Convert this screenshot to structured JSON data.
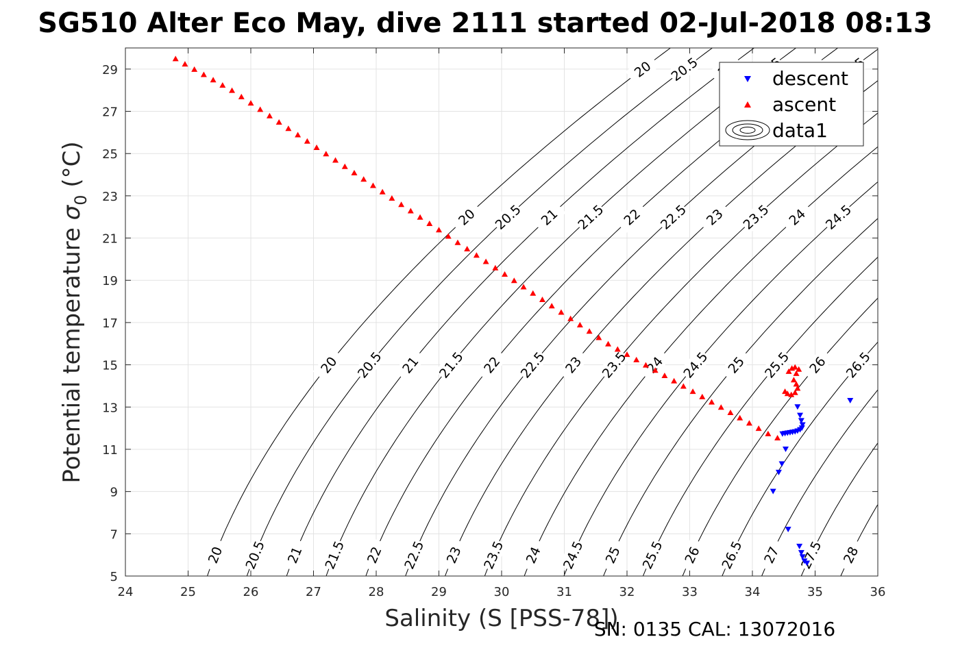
{
  "chart_data": {
    "type": "scatter",
    "title": "SG510 Alter Eco May, dive 2111 started 02-Jul-2018 08:13",
    "xlabel": "Salinity (S [PSS-78])",
    "ylabel_main": "Potential temperature ",
    "ylabel_sigma": "σ",
    "ylabel_subscript": "0",
    "ylabel_unit": " (°C)",
    "xlim": [
      24,
      36
    ],
    "ylim": [
      5,
      30
    ],
    "xticks": [
      24,
      25,
      26,
      27,
      28,
      29,
      30,
      31,
      32,
      33,
      34,
      35,
      36
    ],
    "yticks": [
      5,
      7,
      9,
      11,
      13,
      15,
      17,
      19,
      21,
      23,
      25,
      27,
      29
    ],
    "grid": true,
    "legend_position": "top-right",
    "footer": "SN: 0135  CAL: 13072016",
    "contour_levels": [
      20,
      20.5,
      21,
      21.5,
      22,
      22.5,
      23,
      23.5,
      24,
      24.5,
      25,
      25.5,
      26,
      26.5,
      27,
      27.5,
      28
    ],
    "series": [
      {
        "name": "descent",
        "marker": "triangle-down",
        "color": "#0000ff",
        "points": [
          [
            34.72,
            13.0
          ],
          [
            34.76,
            12.6
          ],
          [
            34.78,
            12.35
          ],
          [
            34.8,
            12.15
          ],
          [
            34.79,
            12.0
          ],
          [
            34.76,
            11.92
          ],
          [
            34.72,
            11.86
          ],
          [
            34.68,
            11.82
          ],
          [
            34.64,
            11.8
          ],
          [
            34.6,
            11.78
          ],
          [
            34.56,
            11.76
          ],
          [
            34.52,
            11.74
          ],
          [
            34.48,
            11.72
          ],
          [
            34.53,
            11.0
          ],
          [
            34.47,
            10.3
          ],
          [
            34.42,
            9.9
          ],
          [
            34.33,
            9.0
          ],
          [
            34.57,
            7.2
          ],
          [
            34.75,
            6.4
          ],
          [
            34.78,
            6.1
          ],
          [
            34.8,
            5.9
          ],
          [
            34.83,
            5.7
          ],
          [
            34.87,
            5.6
          ],
          [
            35.56,
            13.3
          ]
        ]
      },
      {
        "name": "ascent",
        "marker": "triangle-up",
        "color": "#ff0000",
        "points": [
          [
            24.8,
            29.5
          ],
          [
            24.95,
            29.25
          ],
          [
            25.1,
            29.0
          ],
          [
            25.25,
            28.75
          ],
          [
            25.4,
            28.5
          ],
          [
            25.55,
            28.25
          ],
          [
            25.7,
            28.0
          ],
          [
            25.85,
            27.7
          ],
          [
            26.0,
            27.4
          ],
          [
            26.15,
            27.1
          ],
          [
            26.3,
            26.8
          ],
          [
            26.45,
            26.5
          ],
          [
            26.6,
            26.2
          ],
          [
            26.75,
            25.9
          ],
          [
            26.9,
            25.6
          ],
          [
            27.05,
            25.3
          ],
          [
            27.2,
            25.0
          ],
          [
            27.35,
            24.7
          ],
          [
            27.5,
            24.4
          ],
          [
            27.65,
            24.1
          ],
          [
            27.8,
            23.8
          ],
          [
            27.95,
            23.5
          ],
          [
            28.1,
            23.2
          ],
          [
            28.25,
            22.9
          ],
          [
            28.4,
            22.6
          ],
          [
            28.55,
            22.3
          ],
          [
            28.7,
            22.0
          ],
          [
            28.85,
            21.7
          ],
          [
            29.0,
            21.4
          ],
          [
            29.15,
            21.1
          ],
          [
            29.3,
            20.8
          ],
          [
            29.45,
            20.5
          ],
          [
            29.6,
            20.2
          ],
          [
            29.75,
            19.9
          ],
          [
            29.9,
            19.6
          ],
          [
            30.05,
            19.3
          ],
          [
            30.2,
            19.0
          ],
          [
            30.35,
            18.7
          ],
          [
            30.5,
            18.4
          ],
          [
            30.65,
            18.1
          ],
          [
            30.8,
            17.8
          ],
          [
            30.95,
            17.5
          ],
          [
            31.1,
            17.2
          ],
          [
            31.25,
            16.9
          ],
          [
            31.4,
            16.6
          ],
          [
            31.55,
            16.3
          ],
          [
            31.7,
            16.0
          ],
          [
            31.85,
            15.75
          ],
          [
            32.0,
            15.5
          ],
          [
            32.15,
            15.25
          ],
          [
            32.3,
            15.0
          ],
          [
            32.45,
            14.75
          ],
          [
            32.6,
            14.5
          ],
          [
            32.75,
            14.25
          ],
          [
            32.9,
            14.0
          ],
          [
            33.05,
            13.75
          ],
          [
            33.2,
            13.5
          ],
          [
            33.35,
            13.25
          ],
          [
            33.5,
            13.0
          ],
          [
            33.65,
            12.75
          ],
          [
            33.8,
            12.5
          ],
          [
            33.95,
            12.25
          ],
          [
            34.1,
            12.0
          ],
          [
            34.25,
            11.75
          ],
          [
            34.4,
            11.55
          ],
          [
            34.58,
            14.7
          ],
          [
            34.63,
            14.85
          ],
          [
            34.68,
            14.9
          ],
          [
            34.74,
            14.8
          ],
          [
            34.7,
            14.6
          ],
          [
            34.66,
            14.3
          ],
          [
            34.7,
            14.1
          ],
          [
            34.72,
            13.9
          ],
          [
            34.68,
            13.7
          ],
          [
            34.62,
            13.6
          ],
          [
            34.56,
            13.65
          ],
          [
            34.52,
            13.75
          ]
        ]
      },
      {
        "name": "data1",
        "marker": "contour",
        "color": "#000000",
        "points": []
      }
    ]
  }
}
